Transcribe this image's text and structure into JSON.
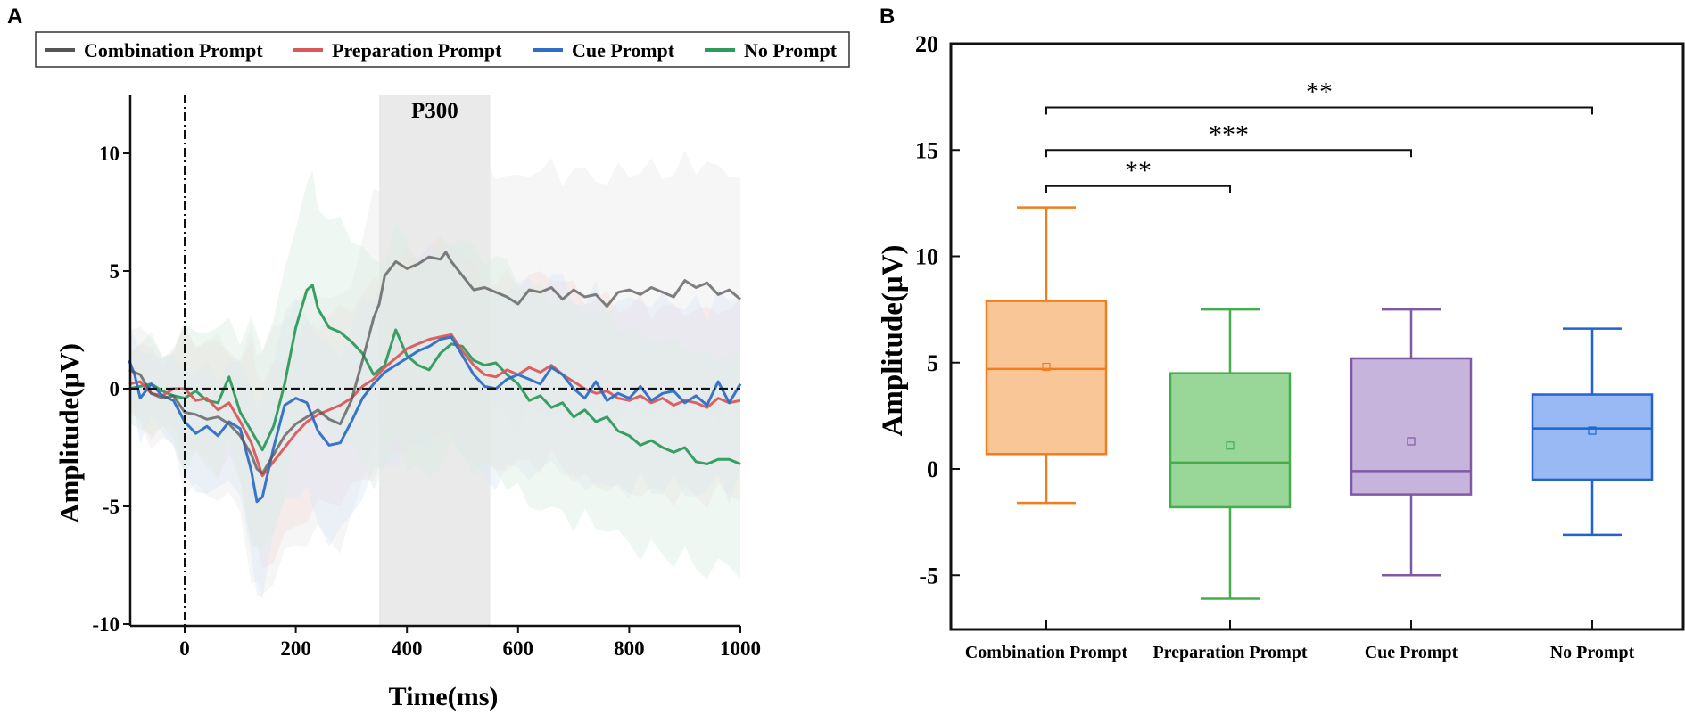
{
  "chart_data": [
    {
      "panel": "A",
      "type": "line",
      "title": "",
      "xlabel": "Time(ms)",
      "ylabel": "Amplitude(μV)",
      "xlim": [
        -100,
        1000
      ],
      "ylim": [
        -10,
        12.5
      ],
      "xticks": [
        0,
        200,
        400,
        600,
        800,
        1000
      ],
      "xtick_labels": [
        "0",
        "200",
        "400",
        "600",
        "800",
        "1000"
      ],
      "yticks": [
        -10,
        -5,
        0,
        5,
        10
      ],
      "ytick_labels": [
        "-10",
        "-5",
        "0",
        "5",
        "10"
      ],
      "legend_position": "top",
      "annotation": {
        "label": "P300",
        "x_range": [
          350,
          550
        ]
      },
      "colors": {
        "Combination Prompt": "#555555",
        "Preparation Prompt": "#d9585a",
        "Cue Prompt": "#2e6fc6",
        "No Prompt": "#2e9a5c"
      },
      "band_colors": {
        "Combination Prompt": "#ececec",
        "Preparation Prompt": "#f6dede",
        "Cue Prompt": "#dde7f6",
        "No Prompt": "#dceee3"
      },
      "series": [
        {
          "name": "Combination Prompt",
          "x": [
            -100,
            -80,
            -60,
            -40,
            -20,
            0,
            20,
            40,
            60,
            80,
            100,
            120,
            130,
            140,
            160,
            180,
            200,
            220,
            240,
            260,
            280,
            300,
            320,
            340,
            350,
            360,
            380,
            400,
            420,
            440,
            460,
            470,
            480,
            500,
            520,
            540,
            560,
            580,
            600,
            620,
            640,
            660,
            680,
            700,
            720,
            740,
            760,
            780,
            800,
            820,
            840,
            860,
            880,
            900,
            920,
            940,
            960,
            980,
            1000
          ],
          "y": [
            0.8,
            0.6,
            -0.2,
            -0.4,
            -0.3,
            -1.0,
            -1.1,
            -1.3,
            -1.2,
            -1.5,
            -2.0,
            -2.8,
            -3.4,
            -3.6,
            -2.8,
            -2.0,
            -1.5,
            -1.2,
            -0.9,
            -1.3,
            -1.5,
            -0.5,
            1.2,
            3.0,
            3.6,
            4.8,
            5.4,
            5.1,
            5.3,
            5.6,
            5.5,
            5.8,
            5.4,
            4.8,
            4.2,
            4.3,
            4.1,
            3.9,
            3.6,
            4.2,
            4.1,
            4.3,
            3.8,
            4.2,
            3.9,
            4.0,
            3.5,
            4.1,
            4.2,
            4.0,
            4.3,
            4.1,
            3.9,
            4.6,
            4.3,
            4.5,
            4.0,
            4.2,
            3.8
          ]
        },
        {
          "name": "Preparation Prompt",
          "x": [
            -100,
            -80,
            -60,
            -40,
            -20,
            0,
            20,
            40,
            60,
            80,
            100,
            120,
            130,
            140,
            160,
            180,
            200,
            220,
            240,
            260,
            280,
            300,
            320,
            340,
            360,
            380,
            400,
            420,
            440,
            460,
            480,
            500,
            520,
            540,
            560,
            580,
            600,
            620,
            640,
            660,
            680,
            700,
            720,
            740,
            760,
            780,
            800,
            820,
            840,
            860,
            880,
            900,
            920,
            940,
            960,
            980,
            1000
          ],
          "y": [
            0.2,
            0.3,
            -0.2,
            -0.3,
            0.0,
            0.0,
            -0.5,
            -0.4,
            -0.9,
            -0.6,
            -1.4,
            -2.3,
            -3.0,
            -3.7,
            -3.1,
            -2.5,
            -1.9,
            -1.4,
            -1.1,
            -0.9,
            -0.7,
            -0.4,
            0.1,
            0.4,
            0.9,
            1.3,
            1.7,
            1.9,
            2.1,
            2.2,
            2.3,
            1.6,
            1.0,
            0.6,
            0.5,
            0.8,
            0.6,
            0.9,
            0.7,
            1.0,
            0.6,
            0.3,
            0.0,
            -0.2,
            -0.1,
            -0.4,
            -0.5,
            -0.3,
            -0.6,
            -0.4,
            -0.7,
            -0.5,
            -0.6,
            -0.8,
            -0.4,
            -0.6,
            -0.5
          ]
        },
        {
          "name": "Cue Prompt",
          "x": [
            -100,
            -90,
            -80,
            -60,
            -40,
            -20,
            0,
            20,
            40,
            60,
            80,
            100,
            120,
            130,
            140,
            160,
            180,
            200,
            220,
            240,
            260,
            280,
            300,
            320,
            340,
            360,
            380,
            400,
            420,
            440,
            460,
            480,
            500,
            520,
            540,
            560,
            580,
            600,
            620,
            640,
            660,
            680,
            700,
            720,
            740,
            760,
            780,
            800,
            820,
            840,
            860,
            880,
            900,
            920,
            940,
            960,
            980,
            1000
          ],
          "y": [
            1.2,
            0.6,
            -0.4,
            0.2,
            -0.3,
            -0.5,
            -1.4,
            -1.9,
            -1.6,
            -2.0,
            -1.4,
            -1.7,
            -3.5,
            -4.8,
            -4.6,
            -2.5,
            -0.7,
            -0.4,
            -0.6,
            -1.8,
            -2.4,
            -2.3,
            -1.4,
            -0.4,
            0.2,
            0.7,
            1.0,
            1.3,
            1.6,
            1.8,
            2.1,
            2.2,
            1.4,
            0.6,
            0.1,
            0.0,
            0.4,
            0.6,
            0.4,
            0.2,
            0.9,
            0.6,
            0.0,
            -0.4,
            0.3,
            -0.5,
            -0.2,
            -0.4,
            0.1,
            -0.5,
            -0.2,
            -0.1,
            -0.6,
            -0.3,
            -0.7,
            0.3,
            -0.6,
            0.2
          ]
        },
        {
          "name": "No Prompt",
          "x": [
            -100,
            -80,
            -60,
            -40,
            -20,
            0,
            20,
            40,
            60,
            80,
            100,
            120,
            140,
            160,
            180,
            200,
            220,
            230,
            240,
            260,
            280,
            300,
            320,
            340,
            360,
            380,
            400,
            420,
            440,
            460,
            480,
            500,
            520,
            540,
            560,
            580,
            600,
            620,
            640,
            660,
            680,
            700,
            720,
            740,
            760,
            780,
            800,
            820,
            840,
            860,
            880,
            900,
            920,
            940,
            960,
            980,
            1000
          ],
          "y": [
            0.0,
            0.1,
            0.2,
            -0.1,
            -0.3,
            -0.4,
            -0.1,
            -0.5,
            -0.6,
            0.5,
            -1.0,
            -1.8,
            -2.6,
            -1.6,
            0.2,
            2.6,
            4.2,
            4.4,
            3.4,
            2.6,
            2.4,
            2.0,
            1.5,
            0.6,
            1.0,
            2.5,
            1.4,
            1.0,
            0.8,
            1.5,
            1.9,
            1.8,
            1.2,
            1.0,
            1.1,
            0.6,
            0.2,
            -0.5,
            -0.3,
            -0.8,
            -0.6,
            -1.2,
            -0.9,
            -1.4,
            -1.2,
            -1.8,
            -2.0,
            -2.4,
            -2.2,
            -2.5,
            -2.7,
            -2.5,
            -3.1,
            -3.2,
            -3.0,
            -3.0,
            -3.2
          ]
        }
      ]
    },
    {
      "panel": "B",
      "type": "box",
      "title": "",
      "xlabel": "",
      "ylabel": "Amplitude(μV)",
      "ylim": [
        -7.5,
        20
      ],
      "yticks": [
        -5,
        0,
        5,
        10,
        15,
        20
      ],
      "ytick_labels": [
        "-5",
        "0",
        "5",
        "10",
        "15",
        "20"
      ],
      "categories": [
        "Combination Prompt",
        "Preparation Prompt",
        "Cue Prompt",
        "No Prompt"
      ],
      "boxes": [
        {
          "name": "Combination Prompt",
          "whisker_low": -1.6,
          "q1": 0.7,
          "median": 4.7,
          "q3": 7.9,
          "whisker_high": 12.3,
          "mean": 4.8,
          "stroke": "#ee7e1f",
          "fill": "#f9c797"
        },
        {
          "name": "Preparation Prompt",
          "whisker_low": -6.1,
          "q1": -1.8,
          "median": 0.3,
          "q3": 4.5,
          "whisker_high": 7.5,
          "mean": 1.1,
          "stroke": "#44ae4c",
          "fill": "#98d798"
        },
        {
          "name": "Cue Prompt",
          "whisker_low": -5.0,
          "q1": -1.2,
          "median": -0.1,
          "q3": 5.2,
          "whisker_high": 7.5,
          "mean": 1.3,
          "stroke": "#7f59a4",
          "fill": "#c7b4dd"
        },
        {
          "name": "No Prompt",
          "whisker_low": -3.1,
          "q1": -0.5,
          "median": 1.9,
          "q3": 3.5,
          "whisker_high": 6.6,
          "mean": 1.8,
          "stroke": "#1f64cf",
          "fill": "#98b9f3"
        }
      ],
      "significance": [
        {
          "from": "Combination Prompt",
          "to": "No Prompt",
          "label": "**",
          "level": 17.0
        },
        {
          "from": "Combination Prompt",
          "to": "Cue Prompt",
          "label": "***",
          "level": 15.0
        },
        {
          "from": "Combination Prompt",
          "to": "Preparation Prompt",
          "label": "**",
          "level": 13.3
        }
      ]
    }
  ]
}
